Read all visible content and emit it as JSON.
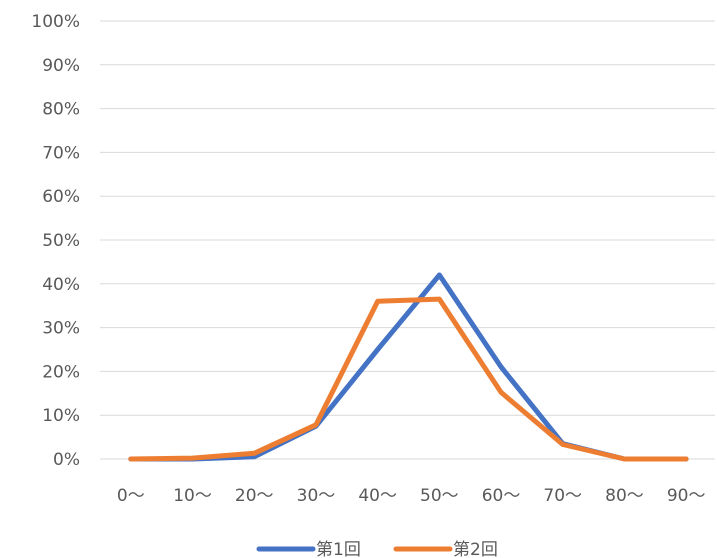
{
  "chart_data": {
    "type": "line",
    "title": "",
    "xlabel": "",
    "ylabel": "",
    "categories": [
      "0～",
      "10～",
      "20～",
      "30～",
      "40～",
      "50～",
      "60～",
      "70～",
      "80～",
      "90～"
    ],
    "ylim": [
      0,
      100
    ],
    "yticks": [
      "0%",
      "10%",
      "20%",
      "30%",
      "40%",
      "50%",
      "60%",
      "70%",
      "80%",
      "90%",
      "100%"
    ],
    "grid": true,
    "legend_position": "bottom",
    "series": [
      {
        "name": "第1回",
        "color": "#4472C4",
        "values": [
          0,
          0,
          0.5,
          7.5,
          25,
          42,
          21,
          3.5,
          0,
          0
        ]
      },
      {
        "name": "第2回",
        "color": "#ED7D31",
        "values": [
          0,
          0.2,
          1.3,
          7.8,
          36,
          36.5,
          15.2,
          3.3,
          0,
          0
        ]
      }
    ]
  }
}
